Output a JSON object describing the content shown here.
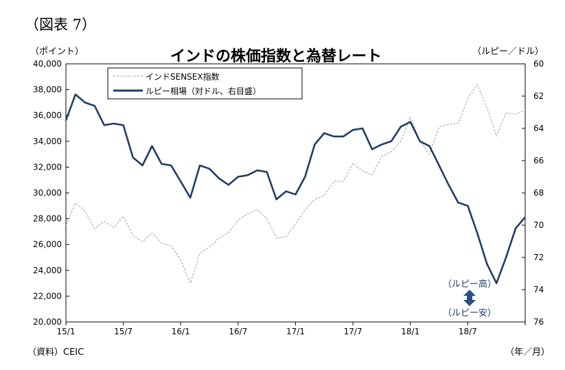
{
  "figure_label": "（図表 7）",
  "source_note": "（資料）CEIC",
  "chart_data": {
    "type": "line",
    "title": "インドの株価指数と為替レート",
    "y_left_label": "（ポイント）",
    "y_right_label": "（ルピー／ドル）",
    "x_unit_label": "（年／月）",
    "x_ticks": [
      "15/1",
      "15/7",
      "16/1",
      "16/7",
      "17/1",
      "17/7",
      "18/1",
      "18/7"
    ],
    "x_range": [
      "2015-01",
      "2019-01"
    ],
    "y_left": {
      "min": 20000,
      "max": 40000,
      "step": 2000,
      "ticks": [
        "20,000",
        "22,000",
        "24,000",
        "26,000",
        "28,000",
        "30,000",
        "32,000",
        "34,000",
        "36,000",
        "38,000",
        "40,000"
      ]
    },
    "y_right": {
      "min": 60,
      "max": 76,
      "step": 2,
      "inverted": true,
      "ticks": [
        "60",
        "62",
        "64",
        "66",
        "68",
        "70",
        "72",
        "74",
        "76"
      ]
    },
    "legend_position": "top-left",
    "grid": false,
    "annotations": {
      "up": "（ルピー高）",
      "down": "（ルピー安）"
    },
    "series": [
      {
        "name": "インドSENSEX指数",
        "axis": "left",
        "style": "dashed",
        "color": "#a0a0a0",
        "x": [
          "2015-01",
          "2015-02",
          "2015-03",
          "2015-04",
          "2015-05",
          "2015-06",
          "2015-07",
          "2015-08",
          "2015-09",
          "2015-10",
          "2015-11",
          "2015-12",
          "2016-01",
          "2016-02",
          "2016-03",
          "2016-04",
          "2016-05",
          "2016-06",
          "2016-07",
          "2016-08",
          "2016-09",
          "2016-10",
          "2016-11",
          "2016-12",
          "2017-01",
          "2017-02",
          "2017-03",
          "2017-04",
          "2017-05",
          "2017-06",
          "2017-07",
          "2017-08",
          "2017-09",
          "2017-10",
          "2017-11",
          "2017-12",
          "2018-01",
          "2018-02",
          "2018-03",
          "2018-04",
          "2018-05",
          "2018-06",
          "2018-07",
          "2018-08",
          "2018-09",
          "2018-10",
          "2018-11",
          "2018-12",
          "2019-01"
        ],
        "values": [
          27500,
          29200,
          28600,
          27200,
          27800,
          27300,
          28200,
          26700,
          26200,
          26900,
          26100,
          25900,
          24800,
          23000,
          25300,
          25800,
          26500,
          26900,
          27900,
          28400,
          28700,
          28000,
          26500,
          26600,
          27600,
          28700,
          29500,
          29800,
          30900,
          30900,
          32300,
          31700,
          31400,
          32800,
          33200,
          34000,
          35900,
          34000,
          33000,
          35100,
          35300,
          35400,
          37300,
          38400,
          36600,
          34400,
          36200,
          36100,
          36400
        ]
      },
      {
        "name": "ルピー相場（対ドル、右目盛）",
        "axis": "right",
        "style": "solid",
        "color": "#1f3c66",
        "x": [
          "2015-01",
          "2015-02",
          "2015-03",
          "2015-04",
          "2015-05",
          "2015-06",
          "2015-07",
          "2015-08",
          "2015-09",
          "2015-10",
          "2015-11",
          "2015-12",
          "2016-01",
          "2016-02",
          "2016-03",
          "2016-04",
          "2016-05",
          "2016-06",
          "2016-07",
          "2016-08",
          "2016-09",
          "2016-10",
          "2016-11",
          "2016-12",
          "2017-01",
          "2017-02",
          "2017-03",
          "2017-04",
          "2017-05",
          "2017-06",
          "2017-07",
          "2017-08",
          "2017-09",
          "2017-10",
          "2017-11",
          "2017-12",
          "2018-01",
          "2018-02",
          "2018-03",
          "2018-04",
          "2018-05",
          "2018-06",
          "2018-07",
          "2018-08",
          "2018-09",
          "2018-10",
          "2018-11",
          "2018-12",
          "2019-01"
        ],
        "values": [
          63.5,
          61.9,
          62.4,
          62.6,
          63.8,
          63.7,
          63.8,
          65.8,
          66.3,
          65.1,
          66.2,
          66.3,
          67.3,
          68.3,
          66.3,
          66.5,
          67.1,
          67.5,
          67.0,
          66.9,
          66.6,
          66.7,
          68.4,
          67.9,
          68.1,
          67.0,
          65.0,
          64.3,
          64.5,
          64.5,
          64.1,
          64.0,
          65.3,
          65.0,
          64.8,
          63.9,
          63.6,
          64.8,
          65.1,
          66.3,
          67.5,
          68.6,
          68.8,
          70.5,
          72.4,
          73.6,
          72.0,
          70.2,
          69.5
        ]
      }
    ]
  }
}
